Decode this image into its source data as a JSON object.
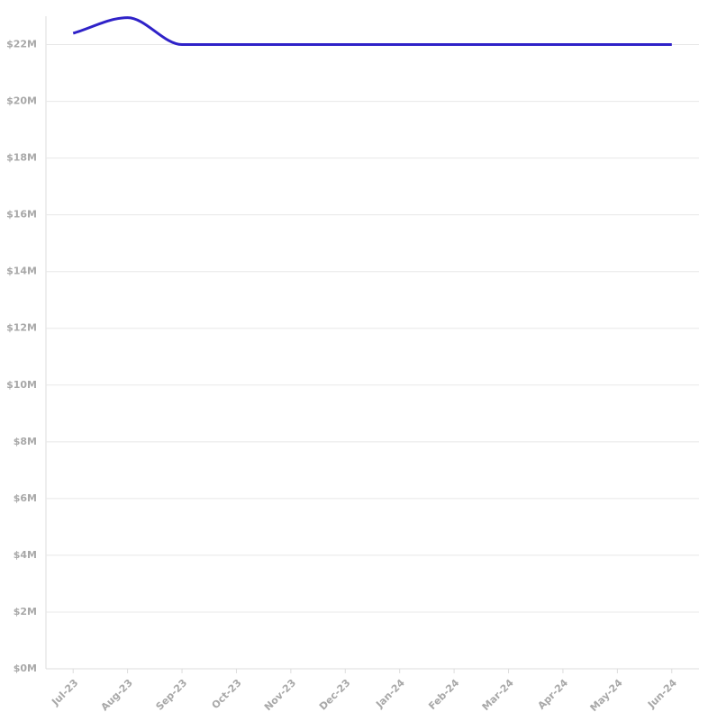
{
  "chart_data": {
    "type": "line",
    "categories": [
      "Jul-23",
      "Aug-23",
      "Sep-23",
      "Oct-23",
      "Nov-23",
      "Dec-23",
      "Jan-24",
      "Feb-24",
      "Mar-24",
      "Apr-24",
      "May-24",
      "Jun-24"
    ],
    "series": [
      {
        "color": "#2f22c8",
        "values": [
          22400000,
          22950000,
          22000000,
          22000000,
          22000000,
          22000000,
          22000000,
          22000000,
          22000000,
          22000000,
          22000000,
          22000000
        ]
      }
    ],
    "ylim": [
      0,
      23000000
    ],
    "yticks": [
      {
        "value": 0,
        "label": "$0M"
      },
      {
        "value": 2000000,
        "label": "$2M"
      },
      {
        "value": 4000000,
        "label": "$4M"
      },
      {
        "value": 6000000,
        "label": "$6M"
      },
      {
        "value": 8000000,
        "label": "$8M"
      },
      {
        "value": 10000000,
        "label": "$10M"
      },
      {
        "value": 12000000,
        "label": "$12M"
      },
      {
        "value": 14000000,
        "label": "$14M"
      },
      {
        "value": 16000000,
        "label": "$16M"
      },
      {
        "value": 18000000,
        "label": "$18M"
      },
      {
        "value": 20000000,
        "label": "$20M"
      },
      {
        "value": 22000000,
        "label": "$22M"
      }
    ],
    "grid": true
  }
}
